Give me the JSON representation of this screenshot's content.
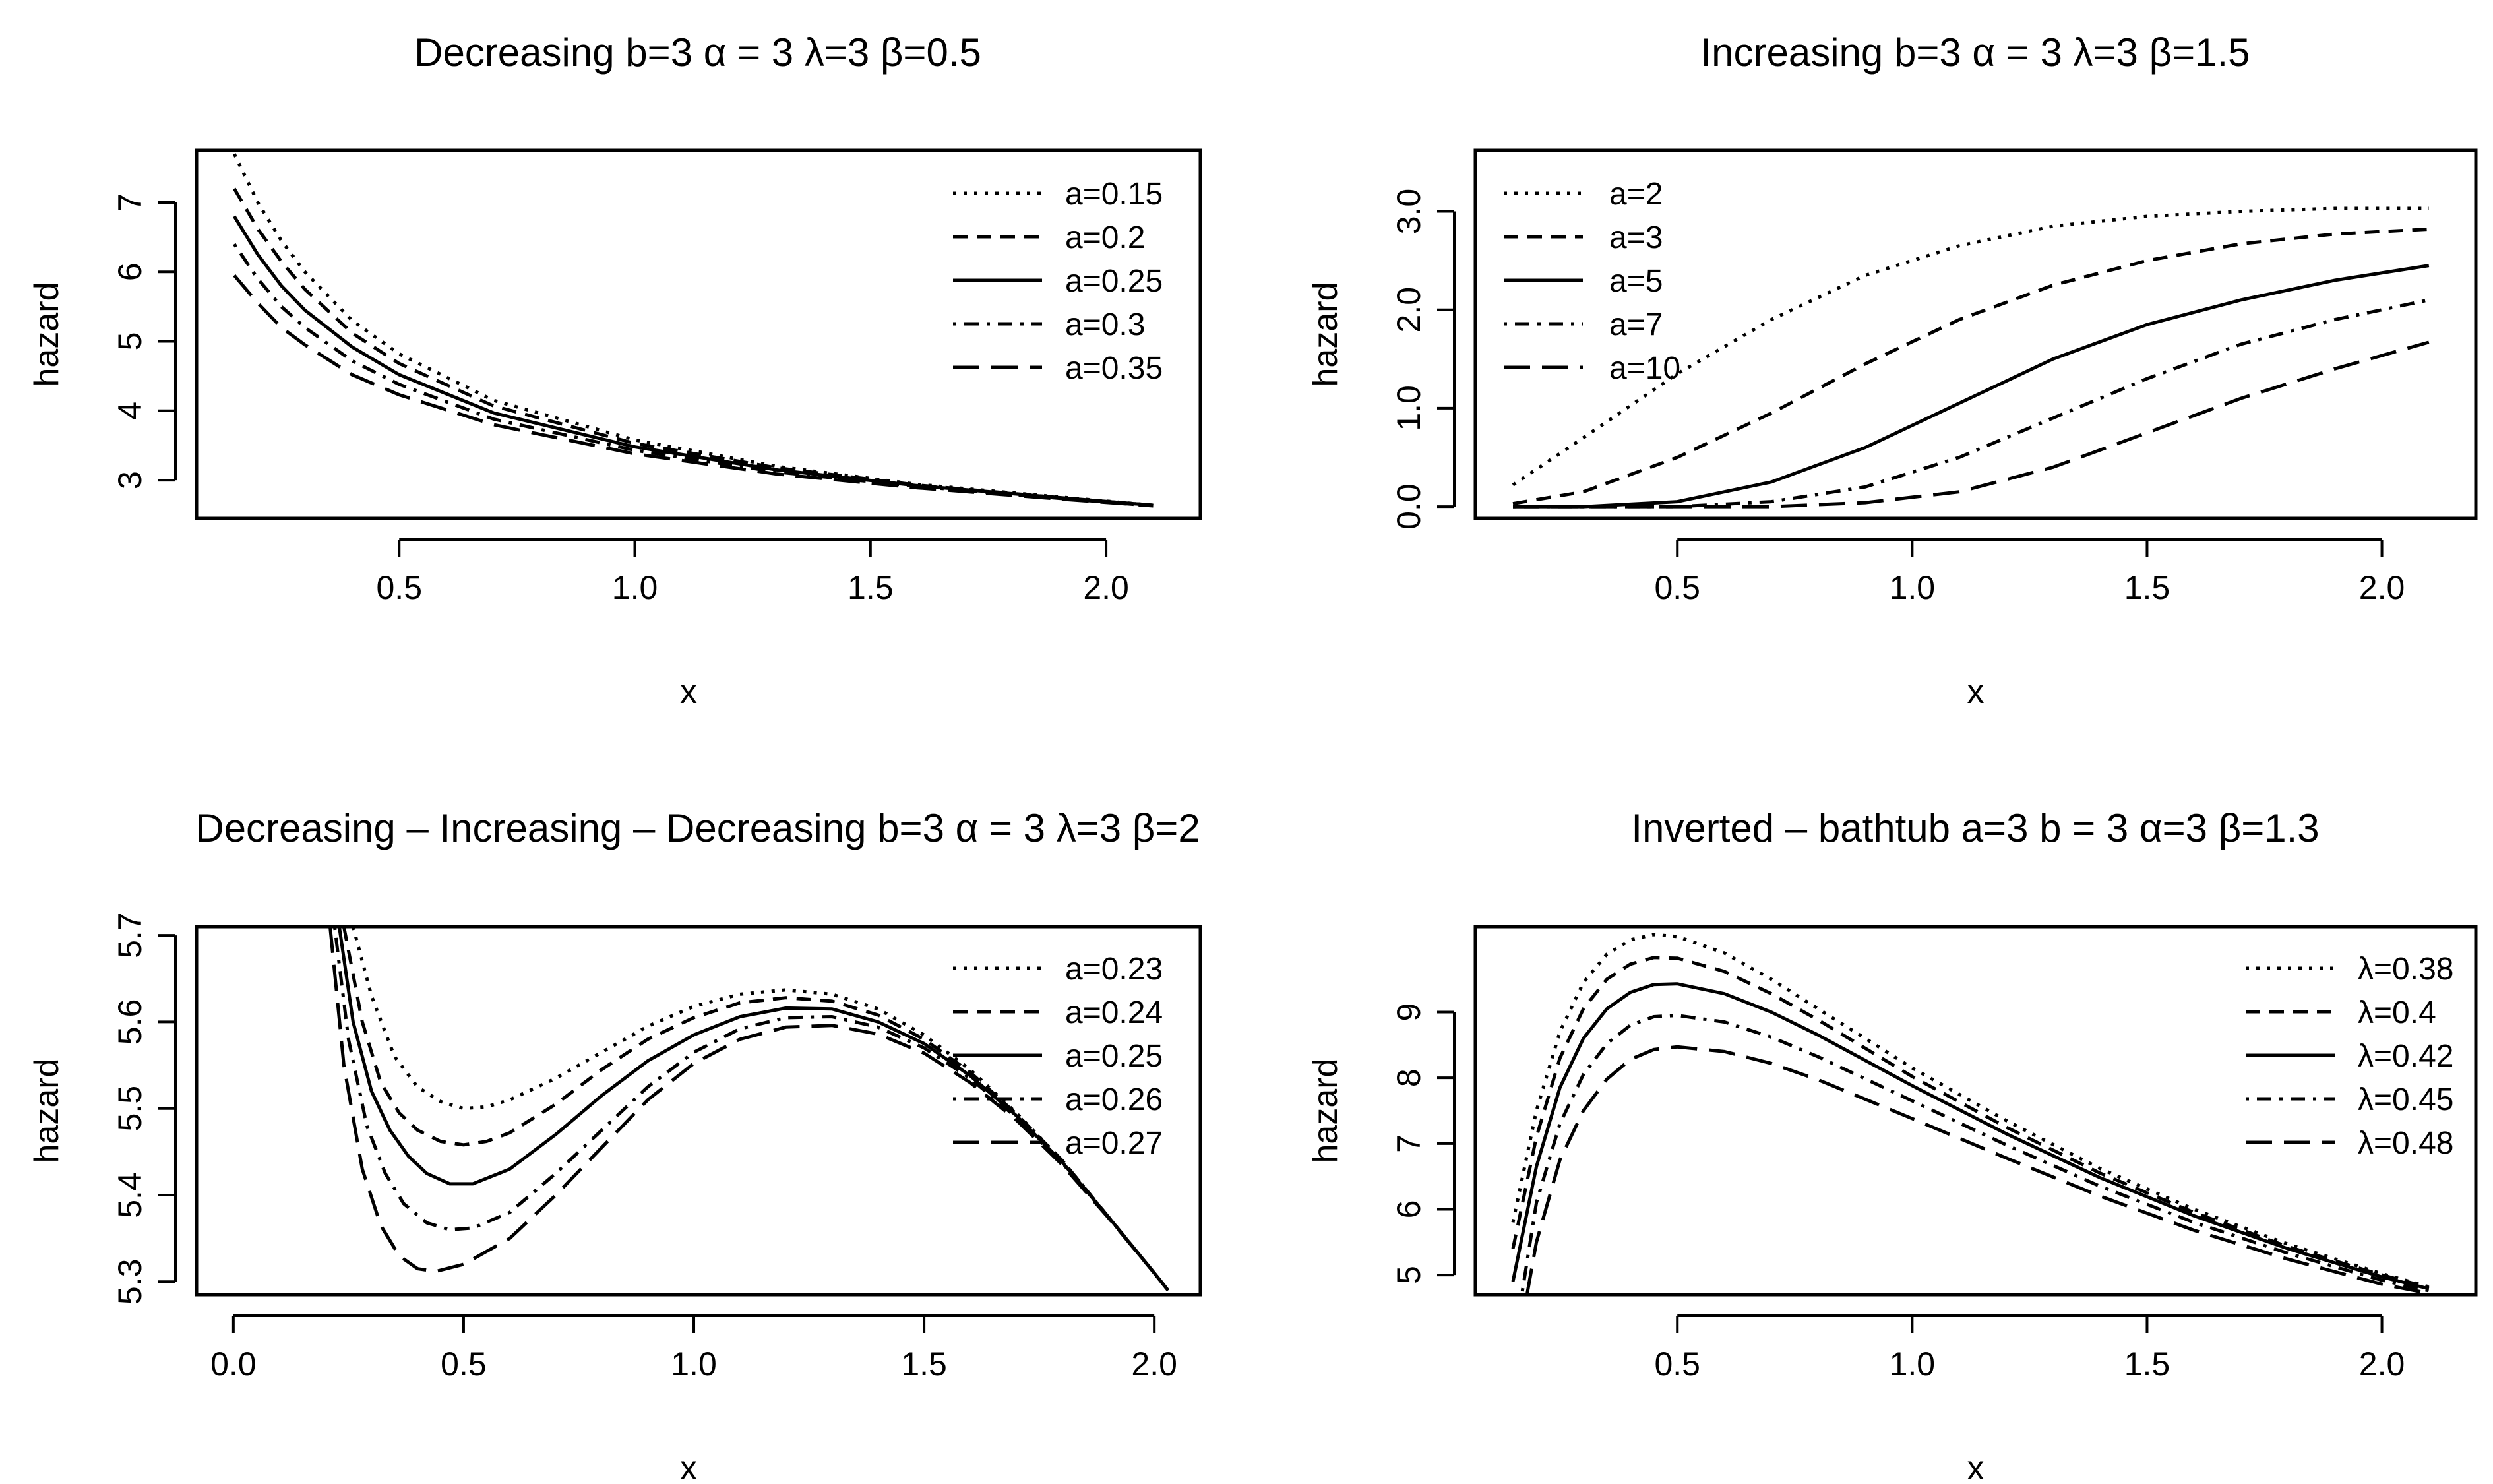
{
  "chart_data": [
    {
      "type": "line",
      "title": "Decreasing   b=3 α = 3 λ=3 β=0.5",
      "xlabel": "x",
      "ylabel": "hazard",
      "xlim": [
        0.07,
        2.2
      ],
      "ylim": [
        2.45,
        7.75
      ],
      "xticks": [
        0.5,
        1.0,
        1.5,
        2.0
      ],
      "xtick_labels": [
        "0.5",
        "1.0",
        "1.5",
        "2.0"
      ],
      "yticks": [
        3,
        4,
        5,
        6,
        7
      ],
      "ytick_labels": [
        "3",
        "4",
        "5",
        "6",
        "7"
      ],
      "legend_position": "top-right",
      "series": [
        {
          "name": "a=0.15",
          "style": "dotted",
          "x": [
            0.15,
            0.2,
            0.25,
            0.3,
            0.4,
            0.5,
            0.7,
            1.0,
            1.3,
            1.6,
            1.9,
            2.1
          ],
          "y": [
            7.7,
            7.0,
            6.45,
            6.0,
            5.3,
            4.82,
            4.15,
            3.58,
            3.2,
            2.94,
            2.76,
            2.64
          ]
        },
        {
          "name": "a=0.2",
          "style": "dashed",
          "x": [
            0.15,
            0.2,
            0.25,
            0.3,
            0.4,
            0.5,
            0.7,
            1.0,
            1.3,
            1.6,
            1.9,
            2.1
          ],
          "y": [
            7.2,
            6.62,
            6.15,
            5.75,
            5.12,
            4.68,
            4.07,
            3.53,
            3.18,
            2.93,
            2.75,
            2.64
          ]
        },
        {
          "name": "a=0.25",
          "style": "solid",
          "x": [
            0.15,
            0.2,
            0.25,
            0.3,
            0.4,
            0.5,
            0.7,
            1.0,
            1.3,
            1.6,
            1.9,
            2.1
          ],
          "y": [
            6.8,
            6.25,
            5.8,
            5.45,
            4.92,
            4.52,
            3.97,
            3.48,
            3.15,
            2.92,
            2.75,
            2.64
          ]
        },
        {
          "name": "a=0.3",
          "style": "dotdash",
          "x": [
            0.15,
            0.2,
            0.25,
            0.3,
            0.4,
            0.5,
            0.7,
            1.0,
            1.3,
            1.6,
            1.9,
            2.1
          ],
          "y": [
            6.4,
            5.9,
            5.5,
            5.2,
            4.72,
            4.38,
            3.88,
            3.43,
            3.12,
            2.91,
            2.74,
            2.63
          ]
        },
        {
          "name": "a=0.35",
          "style": "longdash",
          "x": [
            0.15,
            0.2,
            0.25,
            0.3,
            0.4,
            0.5,
            0.7,
            1.0,
            1.3,
            1.6,
            1.9,
            2.1
          ],
          "y": [
            5.95,
            5.55,
            5.2,
            4.95,
            4.52,
            4.23,
            3.8,
            3.38,
            3.09,
            2.89,
            2.73,
            2.63
          ]
        }
      ]
    },
    {
      "type": "line",
      "title": "Increasing   b=3 α = 3 λ=3 β=1.5",
      "xlabel": "x",
      "ylabel": "hazard",
      "xlim": [
        0.07,
        2.2
      ],
      "ylim": [
        -0.12,
        3.62
      ],
      "xticks": [
        0.5,
        1.0,
        1.5,
        2.0
      ],
      "xtick_labels": [
        "0.5",
        "1.0",
        "1.5",
        "2.0"
      ],
      "yticks": [
        0.0,
        1.0,
        2.0,
        3.0
      ],
      "ytick_labels": [
        "0.0",
        "1.0",
        "2.0",
        "3.0"
      ],
      "legend_position": "top-left",
      "series": [
        {
          "name": "a=2",
          "style": "dotted",
          "x": [
            0.15,
            0.3,
            0.5,
            0.7,
            0.9,
            1.1,
            1.3,
            1.5,
            1.7,
            1.9,
            2.1
          ],
          "y": [
            0.22,
            0.7,
            1.35,
            1.9,
            2.35,
            2.65,
            2.85,
            2.95,
            3.0,
            3.03,
            3.03
          ]
        },
        {
          "name": "a=3",
          "style": "dashed",
          "x": [
            0.15,
            0.3,
            0.5,
            0.7,
            0.9,
            1.1,
            1.3,
            1.5,
            1.7,
            1.9,
            2.1
          ],
          "y": [
            0.03,
            0.15,
            0.5,
            0.95,
            1.45,
            1.9,
            2.25,
            2.5,
            2.67,
            2.77,
            2.82
          ]
        },
        {
          "name": "a=5",
          "style": "solid",
          "x": [
            0.15,
            0.3,
            0.5,
            0.7,
            0.9,
            1.1,
            1.3,
            1.5,
            1.7,
            1.9,
            2.1
          ],
          "y": [
            0.0,
            0.0,
            0.05,
            0.25,
            0.6,
            1.05,
            1.5,
            1.85,
            2.1,
            2.3,
            2.45
          ]
        },
        {
          "name": "a=7",
          "style": "dotdash",
          "x": [
            0.15,
            0.3,
            0.5,
            0.7,
            0.9,
            1.1,
            1.3,
            1.5,
            1.7,
            1.9,
            2.1
          ],
          "y": [
            0.0,
            0.0,
            0.0,
            0.05,
            0.2,
            0.5,
            0.9,
            1.3,
            1.65,
            1.9,
            2.1
          ]
        },
        {
          "name": "a=10",
          "style": "longdash",
          "x": [
            0.15,
            0.3,
            0.5,
            0.7,
            0.9,
            1.1,
            1.3,
            1.5,
            1.7,
            1.9,
            2.1
          ],
          "y": [
            0.0,
            0.0,
            0.0,
            0.0,
            0.04,
            0.15,
            0.4,
            0.75,
            1.1,
            1.4,
            1.67
          ]
        }
      ]
    },
    {
      "type": "line",
      "title": "Decreasing – Increasing – Decreasing   b=3 α = 3 λ=3 β=2",
      "xlabel": "x",
      "ylabel": "hazard",
      "xlim": [
        -0.08,
        2.1
      ],
      "ylim": [
        5.285,
        5.71
      ],
      "xticks": [
        0.0,
        0.5,
        1.0,
        1.5,
        2.0
      ],
      "xtick_labels": [
        "0.0",
        "0.5",
        "1.0",
        "1.5",
        "2.0"
      ],
      "yticks": [
        5.3,
        5.4,
        5.5,
        5.6,
        5.7
      ],
      "ytick_labels": [
        "5.3",
        "5.4",
        "5.5",
        "5.6",
        "5.7"
      ],
      "legend_position": "top-right",
      "series": [
        {
          "name": "a=0.23",
          "style": "dotted",
          "x": [
            0.26,
            0.3,
            0.35,
            0.4,
            0.45,
            0.5,
            0.55,
            0.6,
            0.7,
            0.8,
            0.9,
            1.0,
            1.1,
            1.2,
            1.3,
            1.4,
            1.5,
            1.6,
            1.7,
            1.8,
            1.9,
            2.0,
            2.03
          ],
          "y": [
            5.71,
            5.63,
            5.56,
            5.525,
            5.508,
            5.5,
            5.502,
            5.51,
            5.535,
            5.565,
            5.595,
            5.618,
            5.632,
            5.637,
            5.632,
            5.615,
            5.585,
            5.545,
            5.495,
            5.44,
            5.375,
            5.31,
            5.29
          ]
        },
        {
          "name": "a=0.24",
          "style": "dashed",
          "x": [
            0.24,
            0.28,
            0.32,
            0.36,
            0.4,
            0.45,
            0.5,
            0.55,
            0.6,
            0.7,
            0.8,
            0.9,
            1.0,
            1.1,
            1.2,
            1.3,
            1.4,
            1.5,
            1.6,
            1.7,
            1.8,
            1.9,
            2.0,
            2.03
          ],
          "y": [
            5.71,
            5.6,
            5.53,
            5.495,
            5.475,
            5.462,
            5.458,
            5.462,
            5.472,
            5.505,
            5.545,
            5.58,
            5.605,
            5.622,
            5.628,
            5.624,
            5.608,
            5.58,
            5.542,
            5.494,
            5.44,
            5.375,
            5.31,
            5.29
          ]
        },
        {
          "name": "a=0.25",
          "style": "solid",
          "x": [
            0.23,
            0.26,
            0.3,
            0.34,
            0.38,
            0.42,
            0.47,
            0.52,
            0.6,
            0.7,
            0.8,
            0.9,
            1.0,
            1.1,
            1.2,
            1.3,
            1.4,
            1.5,
            1.6,
            1.7,
            1.8,
            1.9,
            2.0,
            2.03
          ],
          "y": [
            5.71,
            5.6,
            5.52,
            5.475,
            5.445,
            5.425,
            5.413,
            5.413,
            5.43,
            5.47,
            5.515,
            5.555,
            5.585,
            5.606,
            5.616,
            5.615,
            5.6,
            5.575,
            5.538,
            5.492,
            5.438,
            5.375,
            5.31,
            5.29
          ]
        },
        {
          "name": "a=0.26",
          "style": "dotdash",
          "x": [
            0.22,
            0.25,
            0.29,
            0.33,
            0.37,
            0.42,
            0.47,
            0.52,
            0.6,
            0.7,
            0.8,
            0.9,
            1.0,
            1.1,
            1.2,
            1.3,
            1.4,
            1.5,
            1.6,
            1.7,
            1.8,
            1.9,
            2.0,
            2.03
          ],
          "y": [
            5.71,
            5.58,
            5.48,
            5.425,
            5.39,
            5.368,
            5.36,
            5.362,
            5.38,
            5.425,
            5.475,
            5.525,
            5.565,
            5.592,
            5.605,
            5.606,
            5.594,
            5.57,
            5.535,
            5.49,
            5.437,
            5.375,
            5.31,
            5.29
          ]
        },
        {
          "name": "a=0.27",
          "style": "longdash",
          "x": [
            0.21,
            0.24,
            0.28,
            0.32,
            0.36,
            0.4,
            0.44,
            0.5,
            0.6,
            0.7,
            0.8,
            0.9,
            1.0,
            1.1,
            1.2,
            1.3,
            1.4,
            1.5,
            1.6,
            1.7,
            1.8,
            1.9,
            2.0,
            2.03
          ],
          "y": [
            5.71,
            5.55,
            5.43,
            5.365,
            5.33,
            5.315,
            5.312,
            5.32,
            5.35,
            5.4,
            5.455,
            5.51,
            5.552,
            5.58,
            5.594,
            5.596,
            5.586,
            5.564,
            5.53,
            5.487,
            5.435,
            5.374,
            5.31,
            5.29
          ]
        }
      ]
    },
    {
      "type": "line",
      "title": "Inverted – bathtub   a=3 b = 3 α=3 β=1.3",
      "xlabel": "x",
      "ylabel": "hazard",
      "xlim": [
        0.07,
        2.2
      ],
      "ylim": [
        4.7,
        10.3
      ],
      "xticks": [
        0.5,
        1.0,
        1.5,
        2.0
      ],
      "xtick_labels": [
        "0.5",
        "1.0",
        "1.5",
        "2.0"
      ],
      "yticks": [
        5,
        6,
        7,
        8,
        9
      ],
      "ytick_labels": [
        "5",
        "6",
        "7",
        "8",
        "9"
      ],
      "legend_position": "top-right",
      "series": [
        {
          "name": "λ=0.38",
          "style": "dotted",
          "x": [
            0.15,
            0.2,
            0.25,
            0.3,
            0.35,
            0.4,
            0.45,
            0.5,
            0.6,
            0.7,
            0.8,
            1.0,
            1.2,
            1.4,
            1.6,
            1.8,
            2.0,
            2.1
          ],
          "y": [
            5.8,
            7.5,
            8.7,
            9.45,
            9.88,
            10.1,
            10.18,
            10.15,
            9.9,
            9.5,
            9.05,
            8.15,
            7.35,
            6.62,
            6.0,
            5.47,
            5.02,
            4.82
          ]
        },
        {
          "name": "λ=0.4",
          "style": "dashed",
          "x": [
            0.15,
            0.2,
            0.25,
            0.3,
            0.35,
            0.4,
            0.45,
            0.5,
            0.6,
            0.7,
            0.8,
            1.0,
            1.2,
            1.4,
            1.6,
            1.8,
            2.0,
            2.1
          ],
          "y": [
            5.4,
            7.1,
            8.3,
            9.05,
            9.5,
            9.73,
            9.83,
            9.82,
            9.62,
            9.28,
            8.88,
            8.02,
            7.25,
            6.55,
            5.95,
            5.43,
            5.0,
            4.81
          ]
        },
        {
          "name": "λ=0.42",
          "style": "solid",
          "x": [
            0.15,
            0.2,
            0.25,
            0.3,
            0.35,
            0.4,
            0.45,
            0.5,
            0.6,
            0.7,
            0.8,
            1.0,
            1.2,
            1.4,
            1.6,
            1.8,
            2.0,
            2.1
          ],
          "y": [
            4.9,
            6.65,
            7.85,
            8.6,
            9.05,
            9.3,
            9.42,
            9.43,
            9.28,
            9.0,
            8.65,
            7.88,
            7.15,
            6.48,
            5.9,
            5.4,
            4.97,
            4.79
          ]
        },
        {
          "name": "λ=0.45",
          "style": "dotdash",
          "x": [
            0.17,
            0.2,
            0.25,
            0.3,
            0.35,
            0.4,
            0.45,
            0.5,
            0.6,
            0.7,
            0.8,
            1.0,
            1.2,
            1.4,
            1.6,
            1.8,
            2.0,
            2.1
          ],
          "y": [
            4.75,
            6.1,
            7.3,
            8.05,
            8.52,
            8.8,
            8.93,
            8.95,
            8.85,
            8.62,
            8.32,
            7.65,
            6.98,
            6.35,
            5.8,
            5.33,
            4.92,
            4.76
          ]
        },
        {
          "name": "λ=0.48",
          "style": "longdash",
          "x": [
            0.18,
            0.2,
            0.25,
            0.3,
            0.35,
            0.4,
            0.45,
            0.5,
            0.6,
            0.7,
            0.8,
            1.0,
            1.2,
            1.4,
            1.6,
            1.8,
            2.0,
            2.1
          ],
          "y": [
            4.7,
            5.5,
            6.75,
            7.5,
            7.98,
            8.28,
            8.43,
            8.47,
            8.4,
            8.22,
            7.97,
            7.38,
            6.78,
            6.2,
            5.68,
            5.24,
            4.86,
            4.72
          ]
        }
      ]
    }
  ]
}
